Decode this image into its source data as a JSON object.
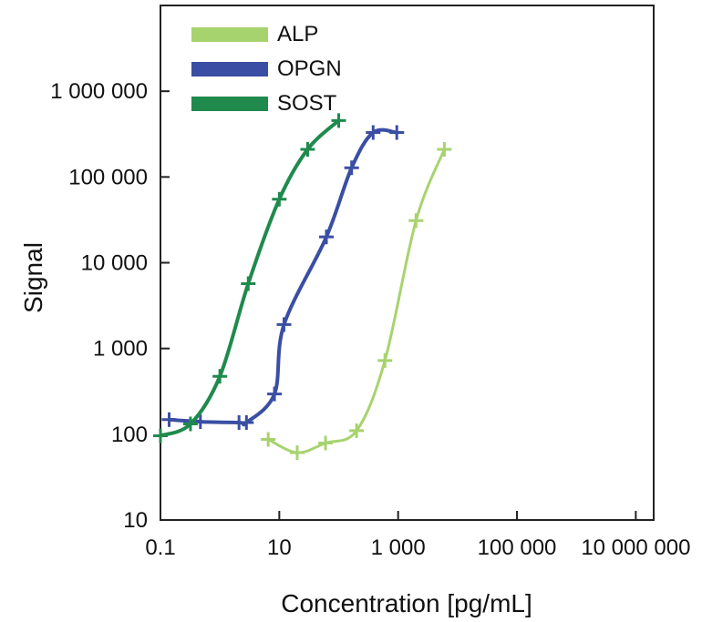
{
  "chart_data": {
    "type": "line",
    "title": "",
    "xlabel": "Concentration  [pg/mL]",
    "ylabel": "Signal",
    "xscale": "log",
    "yscale": "log",
    "xlim": [
      0.1,
      20000000
    ],
    "ylim": [
      10,
      10000000
    ],
    "grid": false,
    "legend_position": "top-left",
    "x_ticks": [
      0.1,
      10,
      1000,
      100000,
      10000000
    ],
    "x_tick_labels": [
      "0.1",
      "10",
      "1 000",
      "100 000",
      "10 000 000"
    ],
    "y_ticks": [
      10,
      100,
      1000,
      10000,
      100000,
      1000000
    ],
    "y_tick_labels": [
      "10",
      "100",
      "1 000",
      "10 000",
      "100 000",
      "1 000 000"
    ],
    "series": [
      {
        "name": "ALP",
        "color": "#a7d36f",
        "x": [
          6.5,
          20,
          60,
          200,
          600,
          2000,
          6000
        ],
        "y": [
          87,
          61,
          79,
          110,
          725,
          31000,
          210000
        ]
      },
      {
        "name": "OPGN",
        "color": "#3a4fa3",
        "x": [
          0.14,
          0.47,
          2.1,
          2.8,
          8.3,
          12,
          62,
          165,
          380,
          950
        ],
        "y": [
          148,
          140,
          137,
          137,
          295,
          1900,
          20000,
          128000,
          330000,
          330000
        ]
      },
      {
        "name": "SOST",
        "color": "#1f8a4c",
        "x": [
          0.1,
          0.32,
          1.0,
          3.0,
          10.0,
          30.0,
          100.0
        ],
        "y": [
          96,
          132,
          474,
          5700,
          55000,
          210000,
          455000
        ]
      }
    ]
  }
}
